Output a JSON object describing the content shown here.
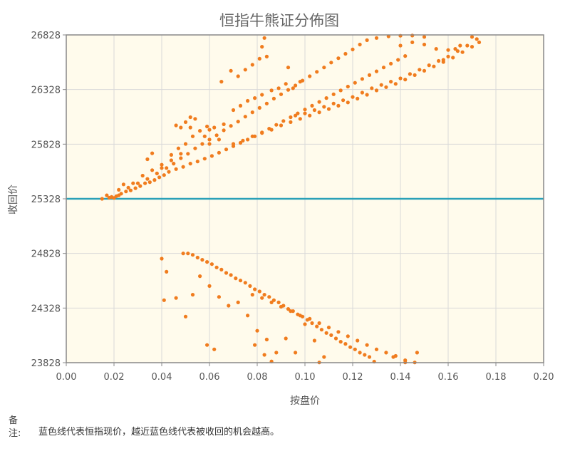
{
  "chart_data": {
    "type": "scatter",
    "title": "恒指牛熊证分佈图",
    "xlabel": "按盘价",
    "ylabel": "收回价",
    "xlim": [
      0,
      0.2
    ],
    "ylim": [
      23828,
      26828
    ],
    "x_ticks": [
      "0.00",
      "0.02",
      "0.04",
      "0.06",
      "0.08",
      "0.10",
      "0.12",
      "0.14",
      "0.16",
      "0.18",
      "0.20"
    ],
    "y_ticks": [
      "26828",
      "26328",
      "25828",
      "25328",
      "24828",
      "24328",
      "23828"
    ],
    "grid": true,
    "reference_line": {
      "y": 25328,
      "color": "#2aa1b8"
    },
    "point_color": "#f07c1e",
    "series": [
      {
        "group": "bull-upper",
        "points": [
          [
            0.015,
            25328
          ],
          [
            0.018,
            25338
          ],
          [
            0.019,
            25345
          ],
          [
            0.02,
            25336
          ],
          [
            0.021,
            25352
          ],
          [
            0.022,
            25360
          ],
          [
            0.023,
            25375
          ],
          [
            0.025,
            25395
          ],
          [
            0.027,
            25405
          ],
          [
            0.029,
            25425
          ],
          [
            0.031,
            25445
          ],
          [
            0.033,
            25470
          ],
          [
            0.035,
            25480
          ],
          [
            0.037,
            25500
          ],
          [
            0.039,
            25525
          ],
          [
            0.041,
            25545
          ],
          [
            0.043,
            25575
          ],
          [
            0.046,
            25600
          ],
          [
            0.049,
            25620
          ],
          [
            0.052,
            25650
          ],
          [
            0.055,
            25670
          ],
          [
            0.058,
            25695
          ],
          [
            0.061,
            25720
          ],
          [
            0.064,
            25750
          ],
          [
            0.067,
            25780
          ],
          [
            0.07,
            25810
          ],
          [
            0.073,
            25840
          ],
          [
            0.076,
            25870
          ],
          [
            0.079,
            25900
          ],
          [
            0.082,
            25935
          ],
          [
            0.085,
            25970
          ],
          [
            0.088,
            26005
          ],
          [
            0.091,
            26040
          ],
          [
            0.094,
            26075
          ],
          [
            0.097,
            26110
          ],
          [
            0.1,
            26145
          ],
          [
            0.103,
            26180
          ],
          [
            0.106,
            26215
          ],
          [
            0.109,
            26250
          ],
          [
            0.112,
            26285
          ],
          [
            0.115,
            26320
          ],
          [
            0.118,
            26355
          ],
          [
            0.121,
            26390
          ],
          [
            0.124,
            26425
          ],
          [
            0.127,
            26460
          ],
          [
            0.13,
            26495
          ],
          [
            0.133,
            26530
          ],
          [
            0.136,
            26565
          ],
          [
            0.139,
            26600
          ],
          [
            0.142,
            26635
          ],
          [
            0.026,
            25430
          ],
          [
            0.03,
            25470
          ],
          [
            0.034,
            25510
          ],
          [
            0.038,
            25560
          ],
          [
            0.042,
            25610
          ],
          [
            0.045,
            25650
          ],
          [
            0.048,
            25700
          ],
          [
            0.051,
            25740
          ],
          [
            0.054,
            25790
          ],
          [
            0.057,
            25830
          ],
          [
            0.06,
            25870
          ],
          [
            0.063,
            25910
          ],
          [
            0.066,
            25955
          ],
          [
            0.069,
            25995
          ],
          [
            0.072,
            26035
          ],
          [
            0.075,
            26080
          ],
          [
            0.078,
            26120
          ],
          [
            0.081,
            26160
          ],
          [
            0.084,
            26200
          ],
          [
            0.087,
            26245
          ],
          [
            0.09,
            26285
          ],
          [
            0.093,
            26325
          ],
          [
            0.096,
            26365
          ],
          [
            0.099,
            26410
          ],
          [
            0.102,
            26450
          ],
          [
            0.105,
            26490
          ],
          [
            0.108,
            26530
          ],
          [
            0.111,
            26575
          ],
          [
            0.114,
            26615
          ],
          [
            0.117,
            26655
          ],
          [
            0.12,
            26695
          ],
          [
            0.123,
            26740
          ],
          [
            0.126,
            26780
          ],
          [
            0.13,
            26800
          ],
          [
            0.135,
            26815
          ],
          [
            0.14,
            26820
          ],
          [
            0.145,
            26822
          ],
          [
            0.15,
            26810
          ],
          [
            0.028,
            25470
          ],
          [
            0.032,
            25540
          ],
          [
            0.036,
            25590
          ],
          [
            0.04,
            25640
          ],
          [
            0.044,
            25730
          ],
          [
            0.047,
            25790
          ],
          [
            0.05,
            25830
          ],
          [
            0.053,
            25900
          ],
          [
            0.056,
            25950
          ],
          [
            0.059,
            25990
          ],
          [
            0.024,
            25460
          ],
          [
            0.022,
            25410
          ],
          [
            0.017,
            25360
          ],
          [
            0.034,
            25690
          ],
          [
            0.036,
            25745
          ],
          [
            0.04,
            25610
          ],
          [
            0.044,
            25680
          ],
          [
            0.048,
            25740
          ],
          [
            0.06,
            25830
          ],
          [
            0.064,
            25870
          ],
          [
            0.046,
            26000
          ],
          [
            0.048,
            25980
          ],
          [
            0.052,
            25980
          ],
          [
            0.05,
            26030
          ],
          [
            0.054,
            26060
          ],
          [
            0.052,
            26075
          ],
          [
            0.06,
            25960
          ],
          [
            0.062,
            25980
          ],
          [
            0.058,
            25900
          ],
          [
            0.066,
            26010
          ],
          [
            0.07,
            26140
          ],
          [
            0.073,
            26180
          ],
          [
            0.076,
            26225
          ],
          [
            0.079,
            26250
          ],
          [
            0.082,
            26280
          ],
          [
            0.086,
            26320
          ],
          [
            0.089,
            26340
          ],
          [
            0.092,
            26380
          ],
          [
            0.095,
            26340
          ],
          [
            0.098,
            26400
          ],
          [
            0.065,
            26400
          ],
          [
            0.069,
            26500
          ],
          [
            0.072,
            26450
          ],
          [
            0.075,
            26510
          ],
          [
            0.078,
            26555
          ],
          [
            0.081,
            26610
          ],
          [
            0.084,
            26630
          ],
          [
            0.082,
            26720
          ],
          [
            0.083,
            26800
          ],
          [
            0.093,
            26530
          ]
        ]
      },
      {
        "group": "bull-lower",
        "points": [
          [
            0.07,
            25830
          ],
          [
            0.074,
            25860
          ],
          [
            0.078,
            25900
          ],
          [
            0.082,
            25930
          ],
          [
            0.086,
            25960
          ],
          [
            0.09,
            26000
          ],
          [
            0.094,
            26030
          ],
          [
            0.098,
            26060
          ],
          [
            0.102,
            26090
          ],
          [
            0.106,
            26120
          ],
          [
            0.11,
            26150
          ],
          [
            0.114,
            26180
          ],
          [
            0.118,
            26210
          ],
          [
            0.122,
            26245
          ],
          [
            0.126,
            26280
          ],
          [
            0.13,
            26320
          ],
          [
            0.134,
            26350
          ],
          [
            0.138,
            26380
          ],
          [
            0.142,
            26420
          ],
          [
            0.146,
            26460
          ],
          [
            0.15,
            26500
          ],
          [
            0.154,
            26540
          ],
          [
            0.158,
            26580
          ],
          [
            0.162,
            26620
          ],
          [
            0.166,
            26670
          ],
          [
            0.17,
            26720
          ],
          [
            0.173,
            26760
          ],
          [
            0.096,
            26090
          ],
          [
            0.1,
            26110
          ],
          [
            0.104,
            26140
          ],
          [
            0.108,
            26170
          ],
          [
            0.112,
            26200
          ],
          [
            0.116,
            26230
          ],
          [
            0.12,
            26260
          ],
          [
            0.124,
            26300
          ],
          [
            0.128,
            26340
          ],
          [
            0.132,
            26370
          ],
          [
            0.136,
            26400
          ],
          [
            0.14,
            26430
          ],
          [
            0.144,
            26470
          ],
          [
            0.148,
            26510
          ],
          [
            0.152,
            26550
          ],
          [
            0.156,
            26590
          ],
          [
            0.16,
            26630
          ],
          [
            0.164,
            26680
          ],
          [
            0.168,
            26730
          ],
          [
            0.172,
            26790
          ],
          [
            0.14,
            26730
          ],
          [
            0.145,
            26760
          ],
          [
            0.15,
            26740
          ],
          [
            0.155,
            26700
          ],
          [
            0.16,
            26690
          ],
          [
            0.165,
            26730
          ],
          [
            0.17,
            26810
          ],
          [
            0.158,
            26600
          ],
          [
            0.163,
            26700
          ]
        ]
      },
      {
        "group": "bear",
        "points": [
          [
            0.049,
            24828
          ],
          [
            0.051,
            24828
          ],
          [
            0.053,
            24815
          ],
          [
            0.055,
            24790
          ],
          [
            0.057,
            24770
          ],
          [
            0.059,
            24750
          ],
          [
            0.061,
            24730
          ],
          [
            0.063,
            24700
          ],
          [
            0.065,
            24680
          ],
          [
            0.067,
            24650
          ],
          [
            0.069,
            24630
          ],
          [
            0.071,
            24600
          ],
          [
            0.073,
            24580
          ],
          [
            0.075,
            24560
          ],
          [
            0.077,
            24530
          ],
          [
            0.079,
            24500
          ],
          [
            0.081,
            24480
          ],
          [
            0.083,
            24450
          ],
          [
            0.085,
            24430
          ],
          [
            0.087,
            24400
          ],
          [
            0.089,
            24380
          ],
          [
            0.091,
            24350
          ],
          [
            0.093,
            24320
          ],
          [
            0.095,
            24300
          ],
          [
            0.097,
            24270
          ],
          [
            0.099,
            24250
          ],
          [
            0.101,
            24220
          ],
          [
            0.103,
            24190
          ],
          [
            0.105,
            24160
          ],
          [
            0.107,
            24130
          ],
          [
            0.109,
            24100
          ],
          [
            0.111,
            24080
          ],
          [
            0.113,
            24050
          ],
          [
            0.115,
            24020
          ],
          [
            0.117,
            24000
          ],
          [
            0.119,
            23970
          ],
          [
            0.121,
            23950
          ],
          [
            0.123,
            23920
          ],
          [
            0.125,
            23900
          ],
          [
            0.127,
            23880
          ],
          [
            0.078,
            24450
          ],
          [
            0.082,
            24420
          ],
          [
            0.086,
            24380
          ],
          [
            0.09,
            24340
          ],
          [
            0.094,
            24300
          ],
          [
            0.098,
            24260
          ],
          [
            0.102,
            24230
          ],
          [
            0.106,
            24190
          ],
          [
            0.11,
            24150
          ],
          [
            0.114,
            24110
          ],
          [
            0.118,
            24070
          ],
          [
            0.122,
            24030
          ],
          [
            0.126,
            23990
          ],
          [
            0.13,
            23950
          ],
          [
            0.134,
            23920
          ],
          [
            0.138,
            23890
          ],
          [
            0.142,
            23850
          ],
          [
            0.146,
            23830
          ],
          [
            0.04,
            24780
          ],
          [
            0.042,
            24660
          ],
          [
            0.041,
            24400
          ],
          [
            0.046,
            24420
          ],
          [
            0.05,
            24250
          ],
          [
            0.053,
            24450
          ],
          [
            0.056,
            24620
          ],
          [
            0.06,
            24530
          ],
          [
            0.064,
            24430
          ],
          [
            0.068,
            24350
          ],
          [
            0.072,
            24380
          ],
          [
            0.076,
            24260
          ],
          [
            0.08,
            24120
          ],
          [
            0.084,
            24040
          ],
          [
            0.088,
            23920
          ],
          [
            0.092,
            24050
          ],
          [
            0.096,
            23920
          ],
          [
            0.1,
            24180
          ],
          [
            0.104,
            24030
          ],
          [
            0.108,
            23880
          ],
          [
            0.059,
            23990
          ],
          [
            0.062,
            23950
          ],
          [
            0.079,
            23990
          ],
          [
            0.083,
            23900
          ],
          [
            0.086,
            23840
          ],
          [
            0.106,
            23830
          ],
          [
            0.129,
            23838
          ],
          [
            0.142,
            23830
          ],
          [
            0.147,
            23920
          ],
          [
            0.137,
            23880
          ]
        ]
      }
    ]
  },
  "note": {
    "label": "备注:",
    "text": "蓝色线代表恒指现价，越近蓝色线代表被收回的机会越高。"
  }
}
